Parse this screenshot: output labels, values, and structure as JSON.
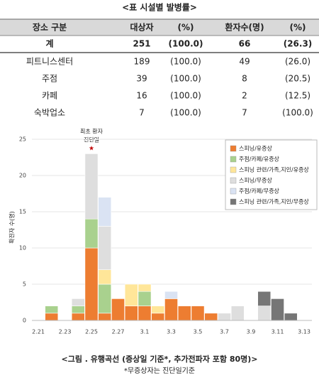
{
  "title": "<표   시설별 발병률>",
  "table": {
    "header": [
      "장소 구분",
      "대상자",
      "(%)",
      "환자수(명)",
      "(%)"
    ],
    "rows": [
      [
        "계",
        "251",
        "(100.0)",
        "66",
        "(26.3)"
      ],
      [
        "피트니스센터",
        "189",
        "(100.0)",
        "49",
        "(26.0)"
      ],
      [
        "주점",
        "39",
        "(100.0)",
        "8",
        "(20.5)"
      ],
      [
        "카페",
        "16",
        "(100.0)",
        "2",
        "(12.5)"
      ],
      [
        "숙박업소",
        "7",
        "(100.0)",
        "7",
        "(100.0)"
      ]
    ]
  },
  "chart_data": {
    "type": "stacked-bar",
    "y_label": "확진자 수(명)",
    "annotation": [
      "최초 환자",
      "진단일"
    ],
    "categories": [
      "2.21",
      null,
      "2.23",
      null,
      "2.25",
      null,
      "2.27",
      null,
      "3.1",
      null,
      "3.3",
      null,
      "3.5",
      null,
      "3.7",
      null,
      "3.9",
      null,
      "3.11",
      null,
      "3.13"
    ],
    "ylim": [
      0,
      25
    ],
    "yticks": [
      0,
      5,
      10,
      15,
      20,
      25
    ],
    "grid": true,
    "legend": "upper-right",
    "series": [
      {
        "name": "스피닝/유증상",
        "color": "#ed7d31",
        "values": [
          0,
          1,
          0,
          1,
          10,
          1,
          3,
          2,
          2,
          1,
          3,
          2,
          2,
          1,
          0,
          0,
          0,
          0,
          0,
          0,
          0
        ]
      },
      {
        "name": "주점/카페/유증상",
        "color": "#a9d18e",
        "values": [
          0,
          1,
          0,
          1,
          4,
          4,
          0,
          0,
          2,
          0,
          0,
          0,
          0,
          0,
          0,
          0,
          0,
          0,
          0,
          0,
          0
        ]
      },
      {
        "name": "스피닝 관련/가족,지인/유증상",
        "color": "#ffe699",
        "values": [
          0,
          0,
          0,
          0,
          0,
          2,
          0,
          3,
          1,
          1,
          0,
          0,
          0,
          0,
          0,
          0,
          0,
          0,
          0,
          0,
          0
        ]
      },
      {
        "name": "스피닝/무증상",
        "color": "#dedede",
        "values": [
          0,
          0,
          0,
          1,
          9,
          6,
          0,
          0,
          0,
          0,
          0,
          0,
          0,
          0,
          1,
          2,
          0,
          2,
          0,
          0,
          0
        ]
      },
      {
        "name": "주점/카페/무증상",
        "color": "#dae3f3",
        "values": [
          0,
          0,
          0,
          0,
          0,
          4,
          0,
          0,
          0,
          0,
          1,
          0,
          0,
          0,
          0,
          0,
          0,
          0,
          0,
          0,
          0
        ]
      },
      {
        "name": "스피닝 관련/가족,지인/무증상",
        "color": "#767676",
        "values": [
          0,
          0,
          0,
          0,
          0,
          0,
          0,
          0,
          0,
          0,
          0,
          0,
          0,
          0,
          0,
          0,
          0,
          2,
          3,
          1,
          0
        ]
      }
    ]
  },
  "caption": "<그림   . 유행곡선 (증상일 기준*, 추가전파자 포함 80명)>",
  "note": "*무증상자는 진단일기준"
}
